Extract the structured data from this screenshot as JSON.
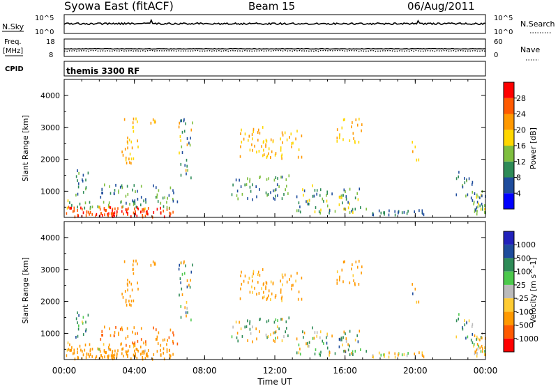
{
  "header": {
    "station": "Syowa East (fitACF)",
    "beam": "Beam 15",
    "date": "06/Aug/2011"
  },
  "param_panels": {
    "nsky_label": "N.Sky",
    "nsky_ticks": [
      "10^5",
      "10^0"
    ],
    "nsearch_label": "N.Search",
    "nsearch_ticks": [
      "10^5",
      "10^0"
    ],
    "freq_label_1": "Freq.",
    "freq_label_2": "[MHz]",
    "freq_ticks": [
      "18",
      "8"
    ],
    "nave_label": "Nave",
    "nave_ticks": [
      "60",
      "0"
    ],
    "cpid_label": "CPID",
    "cpid_text": "themis 3300 RF"
  },
  "chart_data": [
    {
      "type": "heatmap",
      "name": "power",
      "ylabel": "Slant Range [km]",
      "ylim": [
        180,
        4500
      ],
      "yticks": [
        "4000",
        "3000",
        "2000",
        "1000"
      ],
      "xlim": [
        0,
        24
      ],
      "colorbar": {
        "label": "Power [dB]",
        "ticks": [
          "28",
          "24",
          "20",
          "16",
          "12",
          "8",
          "4"
        ],
        "colors": [
          "#0000ff",
          "#1e4c9c",
          "#2e8b57",
          "#7fbf3f",
          "#ffd700",
          "#ff9900",
          "#ff5a00",
          "#ff0000"
        ]
      },
      "clusters": [
        {
          "t": [
            0.1,
            6.2
          ],
          "r": [
            180,
            500
          ],
          "v": [
            24,
            30
          ]
        },
        {
          "t": [
            0.1,
            6.2
          ],
          "r": [
            450,
            700
          ],
          "v": [
            8,
            20
          ]
        },
        {
          "t": [
            0.6,
            1.4
          ],
          "r": [
            700,
            1700
          ],
          "v": [
            4,
            16
          ]
        },
        {
          "t": [
            2.0,
            6.5
          ],
          "r": [
            600,
            1200
          ],
          "v": [
            4,
            16
          ]
        },
        {
          "t": [
            3.2,
            4.2
          ],
          "r": [
            1800,
            3300
          ],
          "v": [
            16,
            24
          ]
        },
        {
          "t": [
            4.8,
            5.3
          ],
          "r": [
            2800,
            3300
          ],
          "v": [
            16,
            24
          ]
        },
        {
          "t": [
            6.5,
            7.3
          ],
          "r": [
            1400,
            3300
          ],
          "v": [
            4,
            24
          ]
        },
        {
          "t": [
            9.5,
            12.8
          ],
          "r": [
            700,
            1500
          ],
          "v": [
            4,
            16
          ]
        },
        {
          "t": [
            10.0,
            13.5
          ],
          "r": [
            2000,
            3000
          ],
          "v": [
            16,
            24
          ]
        },
        {
          "t": [
            13.2,
            15.0
          ],
          "r": [
            300,
            1200
          ],
          "v": [
            4,
            20
          ]
        },
        {
          "t": [
            14.8,
            17.3
          ],
          "r": [
            300,
            1100
          ],
          "v": [
            4,
            20
          ]
        },
        {
          "t": [
            15.5,
            17.0
          ],
          "r": [
            2500,
            3300
          ],
          "v": [
            16,
            24
          ]
        },
        {
          "t": [
            17.5,
            20.5
          ],
          "r": [
            250,
            400
          ],
          "v": [
            4,
            12
          ]
        },
        {
          "t": [
            19.8,
            20.2
          ],
          "r": [
            1900,
            2600
          ],
          "v": [
            16,
            24
          ]
        },
        {
          "t": [
            22.3,
            23.3
          ],
          "r": [
            700,
            1600
          ],
          "v": [
            4,
            16
          ]
        },
        {
          "t": [
            23.3,
            24.0
          ],
          "r": [
            250,
            1000
          ],
          "v": [
            4,
            20
          ]
        }
      ]
    },
    {
      "type": "heatmap",
      "name": "velocity",
      "ylabel": "Slant Range [km]",
      "ylim": [
        180,
        4500
      ],
      "yticks": [
        "4000",
        "3000",
        "2000",
        "1000"
      ],
      "xlim": [
        0,
        24
      ],
      "xticks": [
        "00:00",
        "04:00",
        "08:00",
        "12:00",
        "16:00",
        "20:00",
        "00:00"
      ],
      "xlabel": "Time UT",
      "colorbar": {
        "label": "Velocity [m s^-1]",
        "ticks": [
          "1000",
          "500",
          "100",
          "25",
          "-25",
          "-100",
          "-500",
          "-1000"
        ],
        "colors": [
          "#ff0000",
          "#ff5a00",
          "#ff9900",
          "#ffcc33",
          "#bbbbbb",
          "#4cc94c",
          "#2e8b57",
          "#1e4c9c",
          "#2222bb"
        ]
      },
      "clusters": [
        {
          "t": [
            0.1,
            6.2
          ],
          "r": [
            180,
            500
          ],
          "v": [
            -500,
            -100
          ]
        },
        {
          "t": [
            0.1,
            6.2
          ],
          "r": [
            450,
            700
          ],
          "v": [
            -300,
            50
          ]
        },
        {
          "t": [
            0.6,
            1.4
          ],
          "r": [
            700,
            1700
          ],
          "v": [
            -100,
            800
          ]
        },
        {
          "t": [
            2.0,
            6.5
          ],
          "r": [
            600,
            1200
          ],
          "v": [
            -700,
            -100
          ]
        },
        {
          "t": [
            3.2,
            4.2
          ],
          "r": [
            1800,
            3300
          ],
          "v": [
            -500,
            -100
          ]
        },
        {
          "t": [
            4.8,
            5.3
          ],
          "r": [
            2800,
            3300
          ],
          "v": [
            -500,
            -100
          ]
        },
        {
          "t": [
            6.5,
            7.3
          ],
          "r": [
            1400,
            3300
          ],
          "v": [
            -300,
            800
          ]
        },
        {
          "t": [
            9.5,
            12.8
          ],
          "r": [
            700,
            1500
          ],
          "v": [
            -300,
            400
          ]
        },
        {
          "t": [
            10.0,
            13.5
          ],
          "r": [
            2000,
            3000
          ],
          "v": [
            -400,
            -50
          ]
        },
        {
          "t": [
            13.2,
            15.0
          ],
          "r": [
            300,
            1200
          ],
          "v": [
            -200,
            400
          ]
        },
        {
          "t": [
            14.8,
            17.3
          ],
          "r": [
            300,
            1100
          ],
          "v": [
            -300,
            600
          ]
        },
        {
          "t": [
            15.5,
            17.0
          ],
          "r": [
            2500,
            3300
          ],
          "v": [
            -400,
            -50
          ]
        },
        {
          "t": [
            17.5,
            20.5
          ],
          "r": [
            250,
            400
          ],
          "v": [
            -200,
            100
          ]
        },
        {
          "t": [
            19.8,
            20.2
          ],
          "r": [
            1900,
            2600
          ],
          "v": [
            -400,
            1000
          ]
        },
        {
          "t": [
            22.3,
            23.3
          ],
          "r": [
            700,
            1600
          ],
          "v": [
            -100,
            800
          ]
        },
        {
          "t": [
            23.3,
            24.0
          ],
          "r": [
            250,
            1000
          ],
          "v": [
            -400,
            200
          ]
        }
      ]
    }
  ]
}
